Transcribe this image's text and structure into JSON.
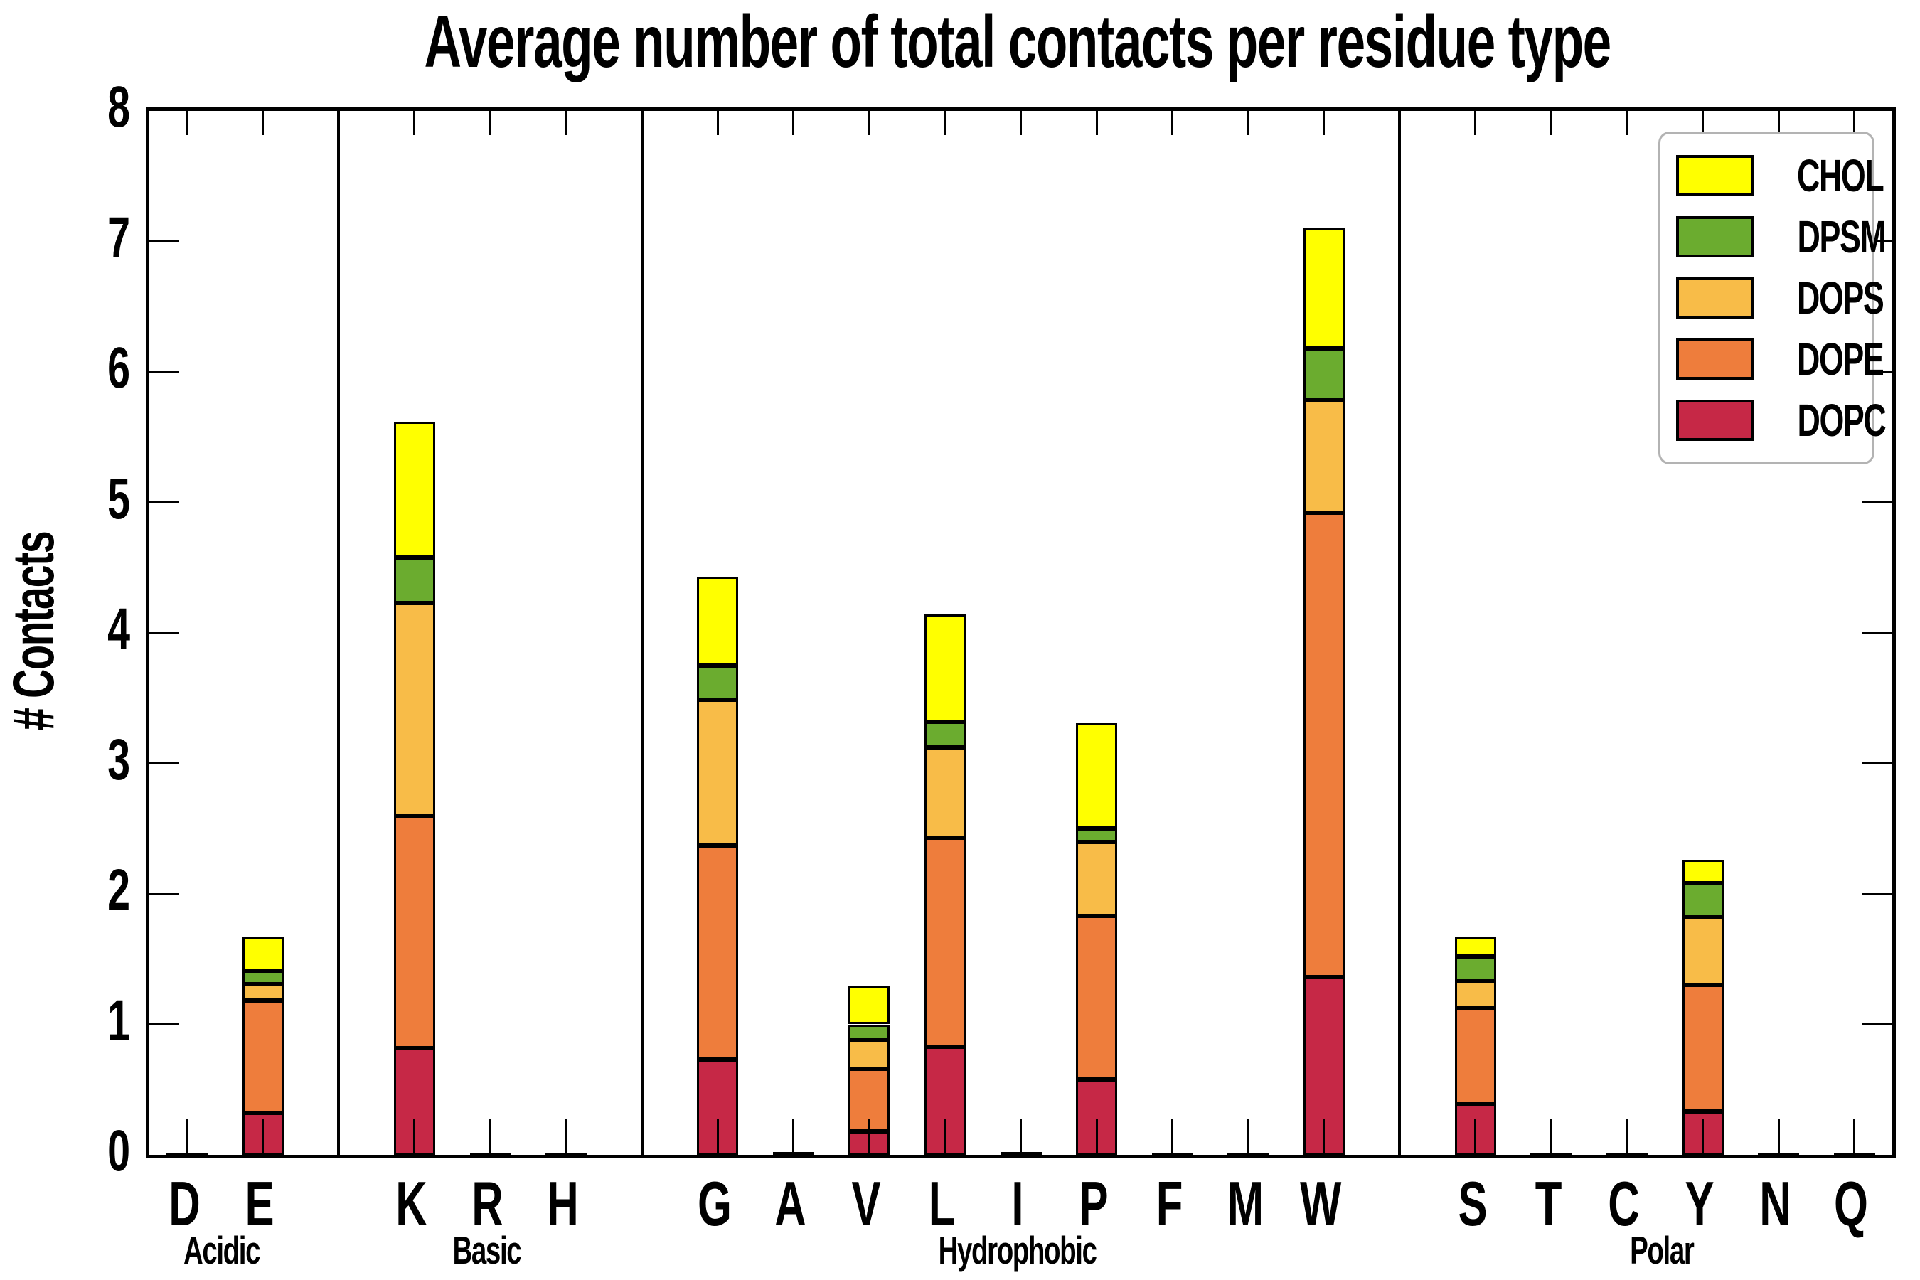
{
  "title": "Average number of total contacts per residue type",
  "chart_data": {
    "type": "bar",
    "stacked": true,
    "title": "Average number of total contacts per residue type",
    "xlabel": "",
    "ylabel": "# Contacts",
    "ylim": [
      0,
      8
    ],
    "yticks": [
      0,
      1,
      2,
      3,
      4,
      5,
      6,
      7,
      8
    ],
    "grid": false,
    "legend_position": "upper right",
    "series_order": [
      "DOPC",
      "DOPE",
      "DOPS",
      "DPSM",
      "CHOL"
    ],
    "legend_entries": [
      "CHOL",
      "DPSM",
      "DOPS",
      "DOPE",
      "DOPC"
    ],
    "colors": {
      "CHOL": "#FFFF00",
      "DPSM": "#6BAC2F",
      "DOPS": "#F8BC48",
      "DOPE": "#EE7D3C",
      "DOPC": "#C62846"
    },
    "categories": [
      "D",
      "E",
      "K",
      "R",
      "H",
      "G",
      "A",
      "V",
      "L",
      "I",
      "P",
      "F",
      "M",
      "W",
      "S",
      "T",
      "C",
      "Y",
      "N",
      "Q"
    ],
    "groups": [
      {
        "label": "Acidic",
        "residues": [
          {
            "label": "D",
            "values": {
              "DOPC": 0.015,
              "DOPE": 0,
              "DOPS": 0,
              "DPSM": 0,
              "CHOL": 0
            }
          },
          {
            "label": "E",
            "values": {
              "DOPC": 0.32,
              "DOPE": 0.86,
              "DOPS": 0.13,
              "DPSM": 0.1,
              "CHOL": 0.26
            }
          }
        ]
      },
      {
        "label": "Basic",
        "residues": [
          {
            "label": "K",
            "values": {
              "DOPC": 0.82,
              "DOPE": 1.78,
              "DOPS": 1.63,
              "DPSM": 0.35,
              "CHOL": 1.04
            }
          },
          {
            "label": "R",
            "values": {
              "DOPC": 0.012,
              "DOPE": 0,
              "DOPS": 0,
              "DPSM": 0,
              "CHOL": 0
            }
          },
          {
            "label": "H",
            "values": {
              "DOPC": 0.012,
              "DOPE": 0,
              "DOPS": 0,
              "DPSM": 0,
              "CHOL": 0
            }
          }
        ]
      },
      {
        "label": "Hydrophobic",
        "residues": [
          {
            "label": "G",
            "values": {
              "DOPC": 0.73,
              "DOPE": 1.64,
              "DOPS": 1.12,
              "DPSM": 0.26,
              "CHOL": 0.68
            }
          },
          {
            "label": "A",
            "values": {
              "DOPC": 0.02,
              "DOPE": 0,
              "DOPS": 0,
              "DPSM": 0,
              "CHOL": 0
            }
          },
          {
            "label": "V",
            "values": {
              "DOPC": 0.18,
              "DOPE": 0.48,
              "DOPS": 0.22,
              "DPSM": 0.12,
              "CHOL": 0.29
            }
          },
          {
            "label": "L",
            "values": {
              "DOPC": 0.83,
              "DOPE": 1.6,
              "DOPS": 0.69,
              "DPSM": 0.2,
              "CHOL": 0.82
            }
          },
          {
            "label": "I",
            "values": {
              "DOPC": 0.02,
              "DOPE": 0,
              "DOPS": 0,
              "DPSM": 0,
              "CHOL": 0
            }
          },
          {
            "label": "P",
            "values": {
              "DOPC": 0.58,
              "DOPE": 1.25,
              "DOPS": 0.57,
              "DPSM": 0.1,
              "CHOL": 0.81
            }
          },
          {
            "label": "F",
            "values": {
              "DOPC": 0.012,
              "DOPE": 0,
              "DOPS": 0,
              "DPSM": 0,
              "CHOL": 0
            }
          },
          {
            "label": "M",
            "values": {
              "DOPC": 0.012,
              "DOPE": 0,
              "DOPS": 0,
              "DPSM": 0,
              "CHOL": 0
            }
          },
          {
            "label": "W",
            "values": {
              "DOPC": 1.36,
              "DOPE": 3.56,
              "DOPS": 0.87,
              "DPSM": 0.39,
              "CHOL": 0.92
            }
          }
        ]
      },
      {
        "label": "Polar",
        "residues": [
          {
            "label": "S",
            "values": {
              "DOPC": 0.39,
              "DOPE": 0.74,
              "DOPS": 0.2,
              "DPSM": 0.19,
              "CHOL": 0.15
            }
          },
          {
            "label": "T",
            "values": {
              "DOPC": 0.015,
              "DOPE": 0,
              "DOPS": 0,
              "DPSM": 0,
              "CHOL": 0
            }
          },
          {
            "label": "C",
            "values": {
              "DOPC": 0.015,
              "DOPE": 0,
              "DOPS": 0,
              "DPSM": 0,
              "CHOL": 0
            }
          },
          {
            "label": "Y",
            "values": {
              "DOPC": 0.33,
              "DOPE": 0.97,
              "DOPS": 0.52,
              "DPSM": 0.26,
              "CHOL": 0.18
            }
          },
          {
            "label": "N",
            "values": {
              "DOPC": 0.012,
              "DOPE": 0,
              "DOPS": 0,
              "DPSM": 0,
              "CHOL": 0
            }
          },
          {
            "label": "Q",
            "values": {
              "DOPC": 0.012,
              "DOPE": 0,
              "DOPS": 0,
              "DPSM": 0,
              "CHOL": 0
            }
          }
        ]
      }
    ]
  }
}
